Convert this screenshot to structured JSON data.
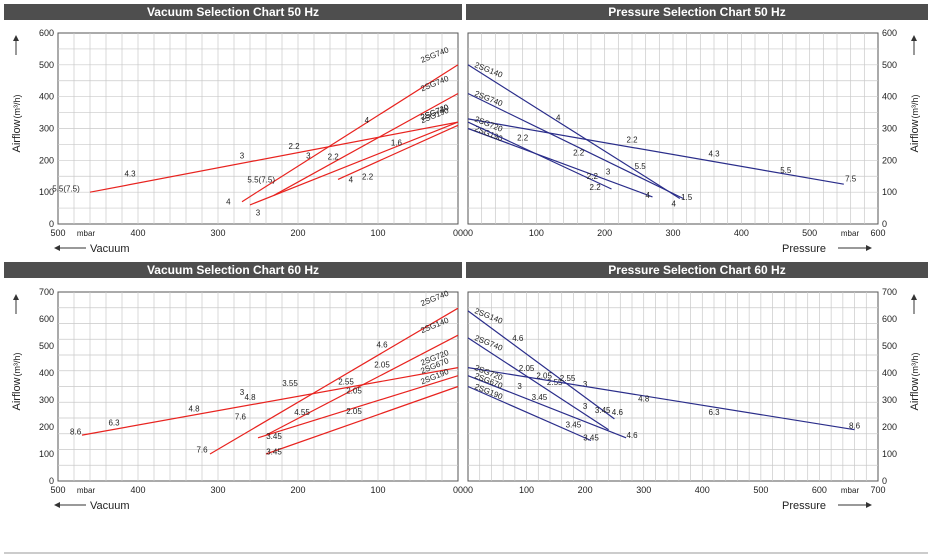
{
  "chart_data": [
    {
      "type": "line",
      "title": "Vacuum Selection Chart 50 Hz",
      "xlabel": "Vacuum",
      "x_unit": "mbar",
      "ylabel": "Airflow",
      "y_unit": "(m³/h)",
      "xlim": [
        500,
        0
      ],
      "ylim": [
        0,
        600
      ],
      "x_ticks": [
        "500",
        "400",
        "300",
        "200",
        "100",
        "00"
      ],
      "y_ticks": [
        "0",
        "100",
        "200",
        "300",
        "400",
        "500",
        "600"
      ],
      "grid": true,
      "series": [
        {
          "name": "2SG740",
          "x": [
            270,
            0
          ],
          "y": [
            70,
            500
          ],
          "labels": [
            {
              "x": 114,
              "y": 318,
              "text": "4"
            }
          ]
        },
        {
          "name": "2SG740",
          "x": [
            230,
            0
          ],
          "y": [
            90,
            410
          ],
          "labels": [
            {
              "x": 187,
              "y": 205,
              "text": "3"
            }
          ]
        },
        {
          "name": "2SG720",
          "x": [
            460,
            0
          ],
          "y": [
            100,
            320
          ],
          "labels": [
            {
              "x": 490,
              "y": 102,
              "text": "5.5(7.5)"
            },
            {
              "x": 410,
              "y": 150,
              "text": "4.3"
            },
            {
              "x": 270,
              "y": 205,
              "text": "3"
            },
            {
              "x": 205,
              "y": 236,
              "text": "2.2"
            }
          ]
        },
        {
          "name": "2SG740",
          "x": [
            260,
            0
          ],
          "y": [
            60,
            320
          ],
          "labels": [
            {
              "x": 287,
              "y": 62,
              "text": "4"
            },
            {
              "x": 250,
              "y": 27,
              "text": "3"
            },
            {
              "x": 246,
              "y": 130,
              "text": "5.5(7.5)"
            },
            {
              "x": 156,
              "y": 203,
              "text": "2.2"
            },
            {
              "x": 77,
              "y": 246,
              "text": "1.6"
            }
          ]
        },
        {
          "name": "2SG190",
          "x": [
            150,
            0
          ],
          "y": [
            140,
            310
          ],
          "labels": [
            {
              "x": 134,
              "y": 130,
              "text": "4"
            },
            {
              "x": 113,
              "y": 140,
              "text": "2.2"
            }
          ]
        }
      ]
    },
    {
      "type": "line",
      "title": "Pressure Selection Chart 50 Hz",
      "xlabel": "Pressure",
      "x_unit": "mbar",
      "ylabel": "Airflow",
      "y_unit": "(m³/h)",
      "xlim": [
        0,
        600
      ],
      "ylim": [
        0,
        600
      ],
      "x_ticks": [
        "00",
        "100",
        "200",
        "300",
        "400",
        "500",
        "600"
      ],
      "y_ticks": [
        "0",
        "100",
        "200",
        "300",
        "400",
        "500",
        "600"
      ],
      "grid": true,
      "series": [
        {
          "name": "2SG140",
          "x": [
            0,
            310
          ],
          "y": [
            500,
            80
          ],
          "labels": [
            {
              "x": 132,
              "y": 325,
              "text": "4"
            },
            {
              "x": 252,
              "y": 172,
              "text": "5.5"
            },
            {
              "x": 301,
              "y": 55,
              "text": "4"
            }
          ]
        },
        {
          "name": "2SG740",
          "x": [
            0,
            315
          ],
          "y": [
            410,
            80
          ],
          "labels": [
            {
              "x": 205,
              "y": 155,
              "text": "3"
            },
            {
              "x": 320,
              "y": 75,
              "text": "1.5"
            }
          ]
        },
        {
          "name": "2SG720",
          "x": [
            0,
            550
          ],
          "y": [
            330,
            125
          ],
          "labels": [
            {
              "x": 240,
              "y": 256,
              "text": "2.2"
            },
            {
              "x": 360,
              "y": 212,
              "text": "4.3"
            },
            {
              "x": 465,
              "y": 160,
              "text": "5.5"
            },
            {
              "x": 560,
              "y": 133,
              "text": "7.5"
            }
          ]
        },
        {
          "name": "2SG190",
          "x": [
            0,
            270
          ],
          "y": [
            300,
            85
          ],
          "labels": [
            {
              "x": 80,
              "y": 262,
              "text": "2.2"
            },
            {
              "x": 263,
              "y": 82,
              "text": "4"
            }
          ]
        },
        {
          "name": "",
          "x": [
            0,
            210
          ],
          "y": [
            320,
            110
          ],
          "labels": [
            {
              "x": 162,
              "y": 215,
              "text": "2.2"
            },
            {
              "x": 182,
              "y": 142,
              "text": "2.2"
            },
            {
              "x": 186,
              "y": 107,
              "text": "2.2"
            }
          ]
        }
      ]
    },
    {
      "type": "line",
      "title": "Vacuum Selection Chart 60 Hz",
      "xlabel": "Vacuum",
      "x_unit": "mbar",
      "ylabel": "Airflow",
      "y_unit": "(m³/h)",
      "xlim": [
        500,
        0
      ],
      "ylim": [
        0,
        700
      ],
      "x_ticks": [
        "500",
        "400",
        "300",
        "200",
        "100",
        "00"
      ],
      "y_ticks": [
        "0",
        "100",
        "200",
        "300",
        "400",
        "500",
        "600",
        "700"
      ],
      "grid": true,
      "series": [
        {
          "name": "2SG740",
          "x": [
            310,
            0
          ],
          "y": [
            100,
            640
          ],
          "labels": [
            {
              "x": 320,
              "y": 105,
              "text": "7.6"
            },
            {
              "x": 210,
              "y": 352,
              "text": "3.55"
            },
            {
              "x": 95,
              "y": 495,
              "text": "4.6"
            }
          ]
        },
        {
          "name": "2SG140",
          "x": [
            240,
            0
          ],
          "y": [
            170,
            540
          ],
          "labels": [
            {
              "x": 270,
              "y": 318,
              "text": "3"
            },
            {
              "x": 195,
              "y": 245,
              "text": "4.55"
            },
            {
              "x": 130,
              "y": 325,
              "text": "2.05"
            },
            {
              "x": 95,
              "y": 420,
              "text": "2.05"
            }
          ]
        },
        {
          "name": "2SG720",
          "x": [
            470,
            0
          ],
          "y": [
            170,
            420
          ],
          "labels": [
            {
              "x": 478,
              "y": 172,
              "text": "8.6"
            },
            {
              "x": 430,
              "y": 205,
              "text": "6.3"
            },
            {
              "x": 330,
              "y": 258,
              "text": "4.8"
            },
            {
              "x": 260,
              "y": 300,
              "text": "4.8"
            },
            {
              "x": 140,
              "y": 358,
              "text": "2.55"
            }
          ]
        },
        {
          "name": "2SG670",
          "x": [
            250,
            0
          ],
          "y": [
            160,
            390
          ],
          "labels": [
            {
              "x": 272,
              "y": 228,
              "text": "7.6"
            },
            {
              "x": 230,
              "y": 155,
              "text": "3.45"
            },
            {
              "x": 130,
              "y": 248,
              "text": "2.05"
            }
          ]
        },
        {
          "name": "2SG190",
          "x": [
            240,
            0
          ],
          "y": [
            100,
            350
          ],
          "labels": [
            {
              "x": 230,
              "y": 98,
              "text": "3.45"
            }
          ]
        }
      ]
    },
    {
      "type": "line",
      "title": "Pressure Selection Chart 60 Hz",
      "xlabel": "Pressure",
      "x_unit": "mbar",
      "ylabel": "Airflow",
      "y_unit": "(m³/h)",
      "xlim": [
        0,
        700
      ],
      "ylim": [
        0,
        700
      ],
      "x_ticks": [
        "00",
        "100",
        "200",
        "300",
        "400",
        "500",
        "600",
        "700"
      ],
      "y_ticks": [
        "0",
        "100",
        "200",
        "300",
        "400",
        "500",
        "600",
        "700"
      ],
      "grid": true,
      "series": [
        {
          "name": "2SG140",
          "x": [
            0,
            250
          ],
          "y": [
            630,
            230
          ],
          "labels": [
            {
              "x": 85,
              "y": 518,
              "text": "4.6"
            },
            {
              "x": 170,
              "y": 370,
              "text": "2.55"
            },
            {
              "x": 200,
              "y": 348,
              "text": "3"
            },
            {
              "x": 255,
              "y": 245,
              "text": "4.6"
            }
          ]
        },
        {
          "name": "2SG740",
          "x": [
            0,
            240
          ],
          "y": [
            530,
            190
          ],
          "labels": [
            {
              "x": 100,
              "y": 408,
              "text": "2.05"
            },
            {
              "x": 130,
              "y": 380,
              "text": "2.05"
            },
            {
              "x": 148,
              "y": 355,
              "text": "2.55"
            },
            {
              "x": 230,
              "y": 252,
              "text": "3.45"
            }
          ]
        },
        {
          "name": "2SG720",
          "x": [
            0,
            660
          ],
          "y": [
            420,
            190
          ],
          "labels": [
            {
              "x": 300,
              "y": 295,
              "text": "4.8"
            },
            {
              "x": 420,
              "y": 245,
              "text": "6.3"
            },
            {
              "x": 660,
              "y": 195,
              "text": "8.6"
            }
          ]
        },
        {
          "name": "2SG670",
          "x": [
            0,
            270
          ],
          "y": [
            390,
            160
          ],
          "labels": [
            {
              "x": 88,
              "y": 340,
              "text": "3"
            },
            {
              "x": 122,
              "y": 300,
              "text": "3.45"
            },
            {
              "x": 200,
              "y": 267,
              "text": "3"
            },
            {
              "x": 280,
              "y": 160,
              "text": "4.6"
            }
          ]
        },
        {
          "name": "2SG190",
          "x": [
            0,
            210
          ],
          "y": [
            350,
            150
          ],
          "labels": [
            {
              "x": 180,
              "y": 198,
              "text": "3.45"
            },
            {
              "x": 210,
              "y": 150,
              "text": "3.45"
            }
          ]
        }
      ]
    }
  ]
}
